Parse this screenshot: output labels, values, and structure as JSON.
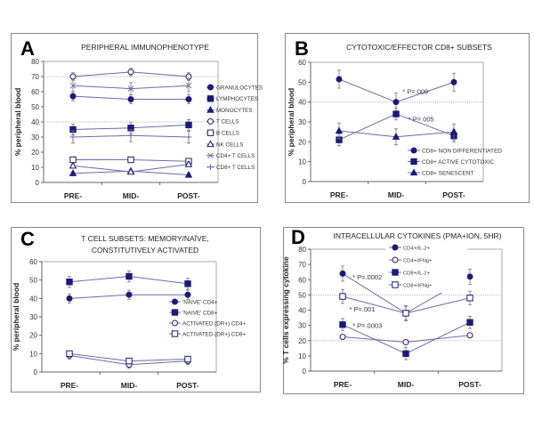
{
  "colors": {
    "marker": "#1a1a7a",
    "line": "#6b6baa",
    "error": "#777777",
    "grid": "#bbbbbb"
  },
  "chart_data": [
    {
      "letter": "A",
      "title": "PERIPHERAL IMMUNOPHENOTYPE",
      "type": "line",
      "ylabel": "% peripheral blood",
      "ylim": [
        0,
        80
      ],
      "yticks": [
        0,
        10,
        20,
        30,
        40,
        50,
        60,
        70,
        80
      ],
      "categories": [
        "PRE-",
        "MID-",
        "POST-"
      ],
      "gridlines": [
        40,
        70
      ],
      "series": [
        {
          "name": "GRANULOCYTES",
          "marker": "circle-filled",
          "values": [
            57,
            55,
            55
          ],
          "errors": [
            3,
            3,
            3
          ]
        },
        {
          "name": "LYMPHOCYTES",
          "marker": "square-filled",
          "values": [
            35,
            36,
            38
          ],
          "errors": [
            3.5,
            3.5,
            3.5
          ]
        },
        {
          "name": "MONOCYTES",
          "marker": "triangle-filled",
          "values": [
            6,
            7.5,
            5
          ],
          "errors": [
            1,
            1,
            1
          ]
        },
        {
          "name": "T CELLS",
          "marker": "circle-open",
          "values": [
            70,
            73,
            70
          ],
          "errors": [
            2.5,
            2.5,
            2.5
          ]
        },
        {
          "name": "B CELLS",
          "marker": "square-open",
          "values": [
            15,
            15,
            14
          ],
          "errors": [
            1,
            1,
            1
          ]
        },
        {
          "name": "NK CELLS",
          "marker": "triangle-open",
          "values": [
            11,
            7,
            12
          ],
          "errors": [
            1.5,
            1.5,
            1.5
          ]
        },
        {
          "name": "CD4+ T CELLS",
          "marker": "x",
          "values": [
            64,
            62,
            64
          ],
          "errors": [
            4,
            4,
            4
          ]
        },
        {
          "name": "CD8+ T CELLS",
          "marker": "plus",
          "values": [
            30,
            31,
            30
          ],
          "errors": [
            4,
            4,
            4
          ]
        }
      ],
      "annotations": []
    },
    {
      "letter": "B",
      "title": "CYTOTOXIC/EFFECTOR CD8+ SUBSETS",
      "type": "line",
      "ylabel": "% peripheral blood",
      "ylim": [
        0,
        60
      ],
      "yticks": [
        0,
        10,
        20,
        30,
        40,
        50,
        60
      ],
      "categories": [
        "PRE-",
        "MID-",
        "POST-"
      ],
      "gridlines": [
        40
      ],
      "series": [
        {
          "name": "CD8+ NON DIFFERENTIATED",
          "marker": "circle-filled",
          "values": [
            51.5,
            40,
            50
          ],
          "errors": [
            4.5,
            4.5,
            4.5
          ]
        },
        {
          "name": "CD8+ ACTIVE CYTOTOXIC",
          "marker": "square-filled",
          "values": [
            21,
            34,
            23
          ],
          "errors": [
            3,
            3,
            3
          ]
        },
        {
          "name": "CD8+ SENESCENT",
          "marker": "triangle-filled",
          "values": [
            25.5,
            22.5,
            25
          ],
          "errors": [
            4,
            4,
            4
          ]
        }
      ],
      "annotations": [
        {
          "text": "* P=.009",
          "x": 1.05,
          "y": 45.5
        },
        {
          "text": "* P=.005",
          "x": 1.15,
          "y": 31.5
        }
      ]
    },
    {
      "letter": "C",
      "title": "T CELL SUBSETS: MEMORY/NAÏVE,",
      "title2": "CONSTITUTIVELY ACTIVATED",
      "type": "line",
      "ylabel": "% peripheral blood",
      "ylim": [
        0,
        60
      ],
      "yticks": [
        0,
        10,
        20,
        30,
        40,
        50,
        60
      ],
      "categories": [
        "PRE-",
        "MID-",
        "POST-"
      ],
      "gridlines": [],
      "series": [
        {
          "name": "'NAIVE' CD4+",
          "marker": "circle-filled",
          "values": [
            40,
            42,
            42
          ],
          "errors": [
            2.5,
            2.5,
            2.5
          ]
        },
        {
          "name": "'NAIVE' CD8+",
          "marker": "square-filled",
          "values": [
            49,
            52,
            48
          ],
          "errors": [
            3,
            3,
            3
          ]
        },
        {
          "name": "ACTIVATED (DR+) CD4+",
          "marker": "circle-open",
          "values": [
            9,
            4,
            6
          ],
          "errors": [
            2,
            2,
            2
          ]
        },
        {
          "name": "ACTIVATED (DR+) CD8+",
          "marker": "square-open",
          "values": [
            10,
            6,
            7
          ],
          "errors": [
            1.5,
            1.5,
            1.5
          ]
        }
      ],
      "annotations": []
    },
    {
      "letter": "D",
      "title": "INTRACELLULAR CYTOKINES (PMA+ION, 5HR)",
      "type": "line",
      "ylabel": "% T cells expressing cytokine",
      "ylim": [
        0,
        80
      ],
      "yticks": [
        0,
        10,
        20,
        30,
        40,
        50,
        60,
        70,
        80
      ],
      "categories": [
        "PRE-",
        "MID-",
        "POST-"
      ],
      "gridlines": [
        20,
        50
      ],
      "series": [
        {
          "name": "CD4+/IL-2+",
          "marker": "circle-filled",
          "values": [
            64,
            38,
            62
          ],
          "errors": [
            5,
            5,
            5
          ]
        },
        {
          "name": "CD4+/IFNg+",
          "marker": "circle-open",
          "values": [
            22.5,
            19,
            23.5
          ],
          "errors": [
            1,
            1,
            1
          ]
        },
        {
          "name": "CD8+/IL-2+",
          "marker": "square-filled",
          "values": [
            30.5,
            11.5,
            32
          ],
          "errors": [
            4,
            4,
            4
          ]
        },
        {
          "name": "CD8+/IFNg+",
          "marker": "square-open",
          "values": [
            49,
            38,
            48
          ],
          "errors": [
            4.5,
            4.5,
            4.5
          ]
        }
      ],
      "annotations": [
        {
          "text": "* P=.0002",
          "x": 0.1,
          "y": 62
        },
        {
          "text": "* P=.001",
          "x": 0.05,
          "y": 41
        },
        {
          "text": "* P=.0003",
          "x": 0.1,
          "y": 30
        }
      ]
    }
  ]
}
